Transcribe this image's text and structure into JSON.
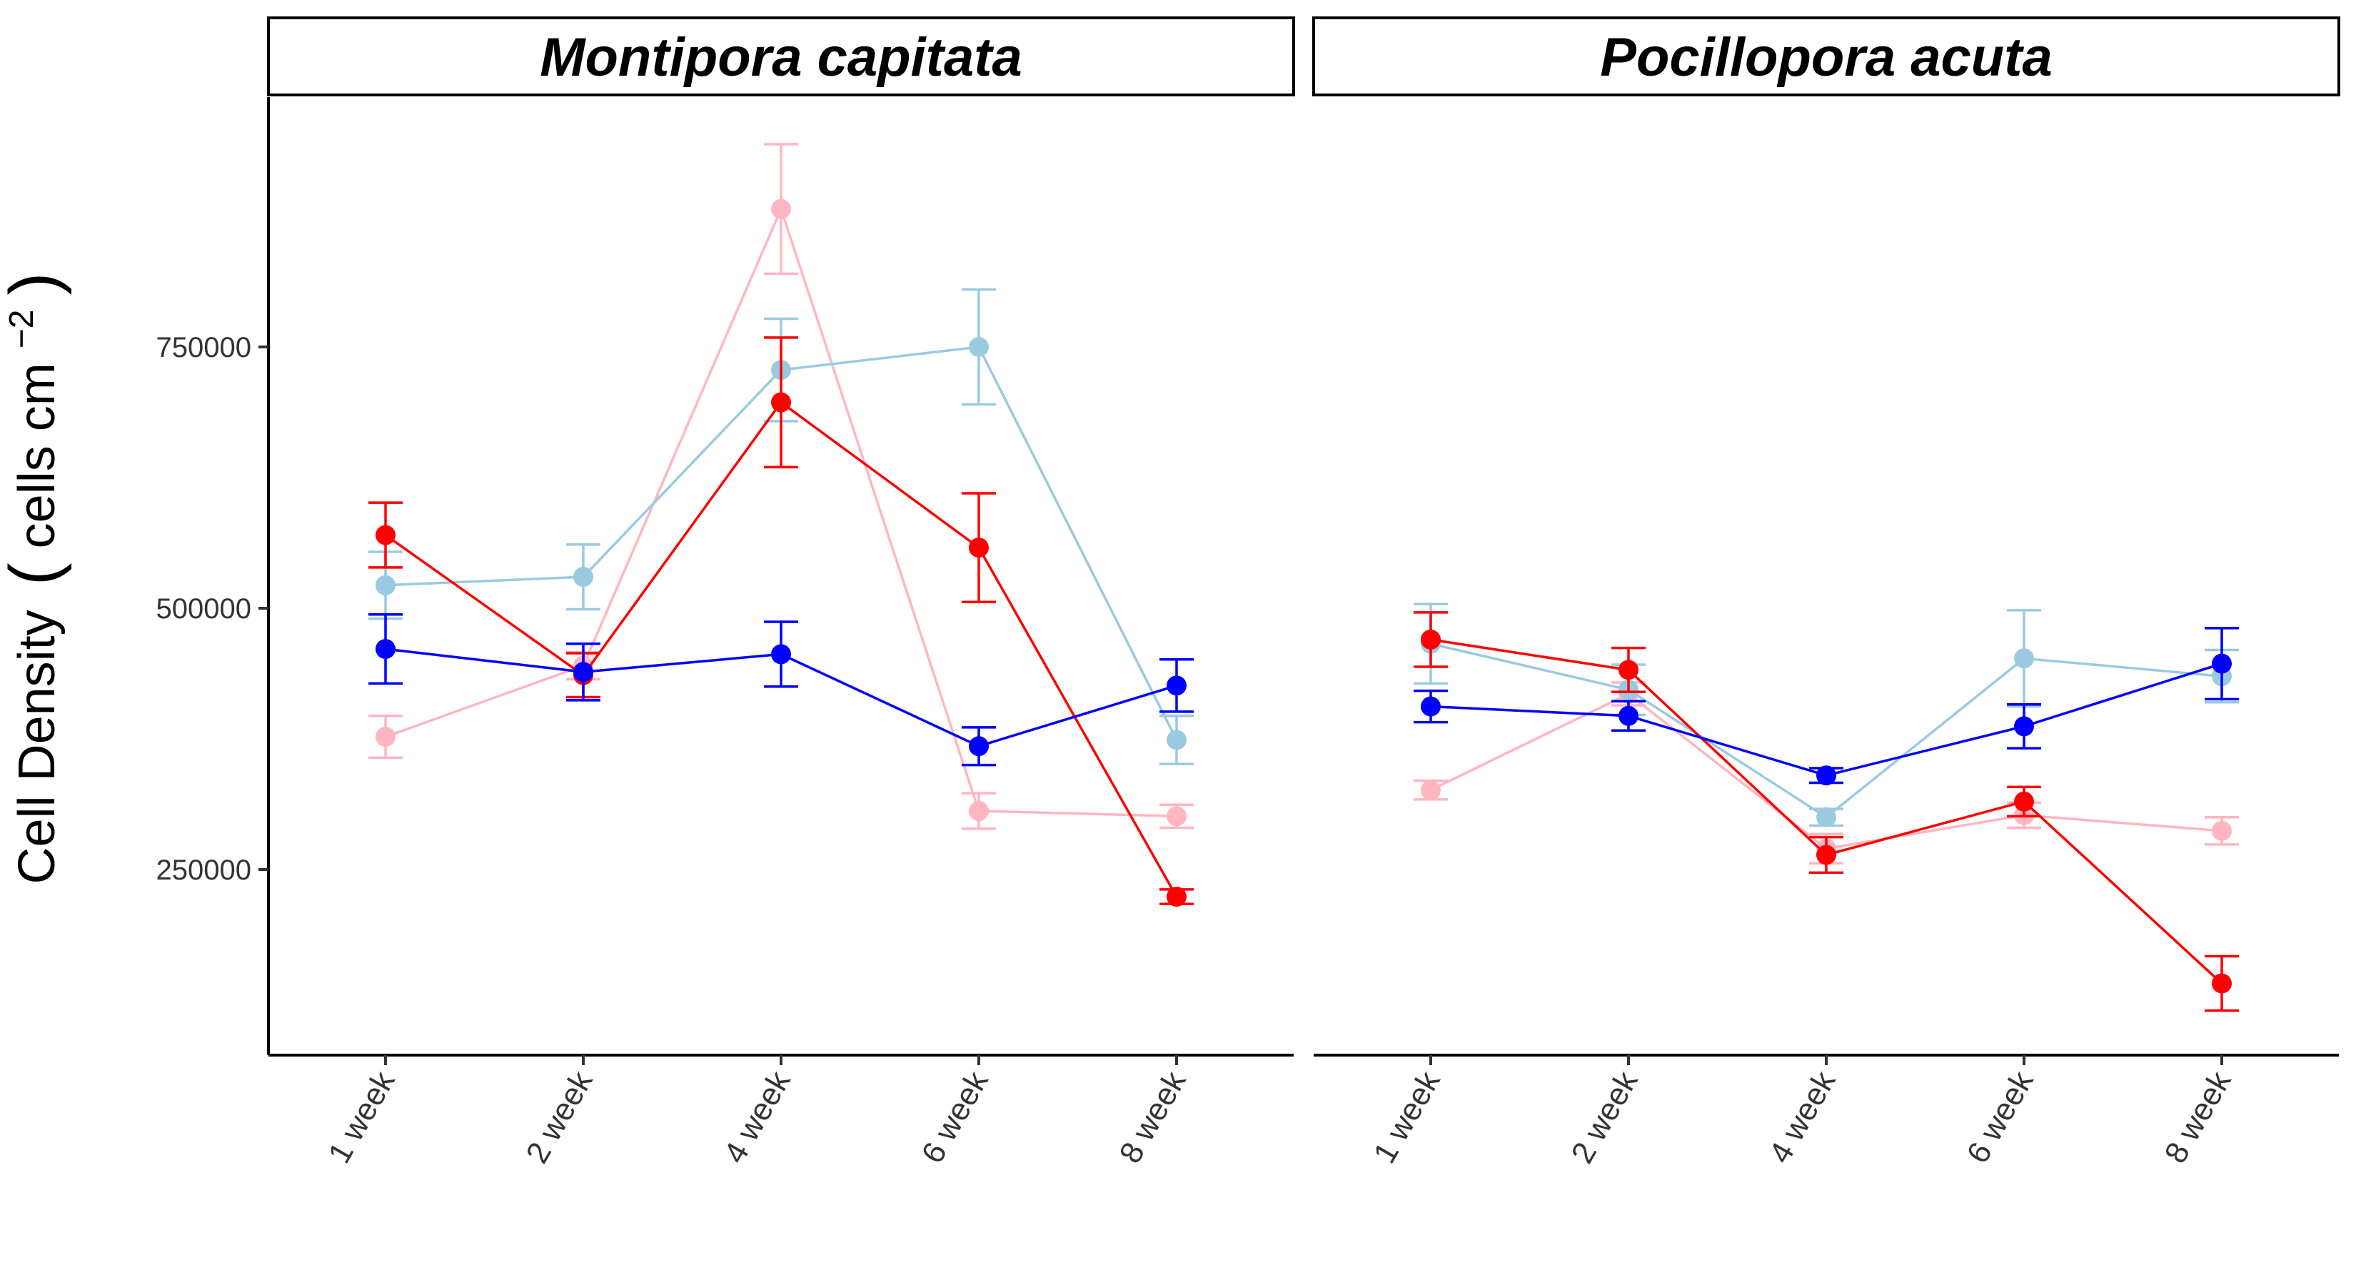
{
  "chart_data": {
    "type": "line",
    "ylabel": "Cell Density (cells cm−2)",
    "ylabel_parts": {
      "main": "Cell Density",
      "unit": "cells cm",
      "exponent": "−2"
    },
    "yticks": [
      "250000",
      "500000",
      "750000"
    ],
    "ytick_values": [
      250000,
      500000,
      750000
    ],
    "ylim": [
      70000,
      990000
    ],
    "categories": [
      "1 week",
      "2 week",
      "4 week",
      "6 week",
      "8 week"
    ],
    "legend": "none",
    "grid": false,
    "panels": [
      {
        "title": "Montipora capitata",
        "series": [
          {
            "color": "#FFB6C1",
            "values": [
              377000,
              445000,
              882000,
              306000,
              301000
            ],
            "errors": [
              20000,
              13000,
              62000,
              17000,
              11000
            ]
          },
          {
            "color": "#9ACAE0",
            "values": [
              522000,
              530000,
              728000,
              750000,
              374000
            ],
            "errors": [
              32000,
              31000,
              49000,
              55000,
              23000
            ]
          },
          {
            "color": "#FF0000",
            "values": [
              570000,
              436000,
              697000,
              558000,
              224000
            ],
            "errors": [
              31000,
              21000,
              62000,
              52000,
              7000
            ]
          },
          {
            "color": "#0000FF",
            "values": [
              461000,
              439000,
              456000,
              368000,
              426000
            ],
            "errors": [
              33000,
              27000,
              31000,
              18000,
              25000
            ]
          }
        ]
      },
      {
        "title": "Pocillopora acuta",
        "series": [
          {
            "color": "#FFB6C1",
            "values": [
              326000,
              418000,
              270000,
              302000,
              287000
            ],
            "errors": [
              9000,
              11000,
              14000,
              12000,
              13000
            ]
          },
          {
            "color": "#9ACAE0",
            "values": [
              466000,
              422000,
              300000,
              452000,
              435000
            ],
            "errors": [
              38000,
              24000,
              8000,
              46000,
              25000
            ]
          },
          {
            "color": "#FF0000",
            "values": [
              470000,
              441000,
              264000,
              315000,
              141000
            ],
            "errors": [
              26000,
              21000,
              17000,
              14000,
              26000
            ]
          },
          {
            "color": "#0000FF",
            "values": [
              406000,
              397000,
              340000,
              387000,
              447000
            ],
            "errors": [
              15000,
              14000,
              7000,
              21000,
              34000
            ]
          }
        ]
      }
    ]
  }
}
